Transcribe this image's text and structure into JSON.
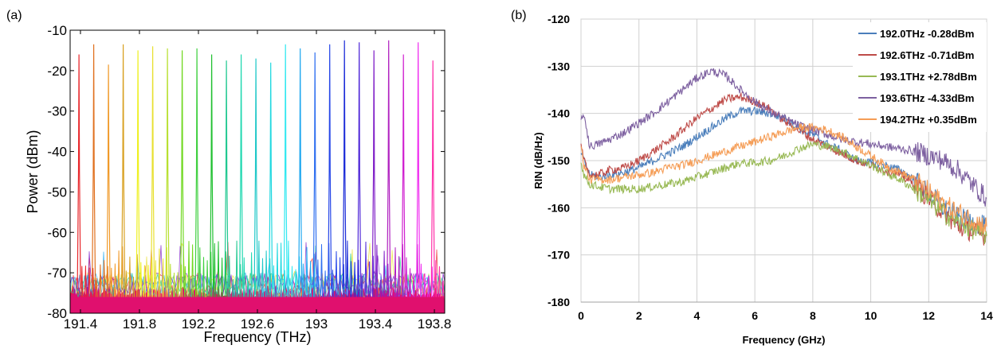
{
  "panels": [
    {
      "panel_label": "(a)"
    },
    {
      "panel_label": "(b)"
    }
  ],
  "chart_data": [
    {
      "type": "line",
      "subplot": "(a)",
      "xlabel": "Frequency (THz)",
      "ylabel": "Power (dBm)",
      "xlim": [
        191.33,
        193.87
      ],
      "ylim": [
        -80,
        -10
      ],
      "x_ticks": [
        191.4,
        191.8,
        192.2,
        192.6,
        193,
        193.4,
        193.8
      ],
      "x_tick_labels": [
        "191.4",
        "191.8",
        "192.2",
        "192.6",
        "193",
        "193.4",
        "193.8"
      ],
      "y_ticks": [
        -80,
        -70,
        -60,
        -50,
        -40,
        -30,
        -20,
        -10
      ],
      "y_tick_labels": [
        "-80",
        "-70",
        "-60",
        "-50",
        "-40",
        "-30",
        "-20",
        "-10"
      ],
      "grid": false,
      "noise_floor_dbm": -75,
      "comb_lines": [
        {
          "freq": 191.39,
          "peak": -16,
          "color": "#e8262a"
        },
        {
          "freq": 191.49,
          "peak": -13.5,
          "color": "#e0701e"
        },
        {
          "freq": 191.59,
          "peak": -18.5,
          "color": "#f09a2a"
        },
        {
          "freq": 191.69,
          "peak": -13.5,
          "color": "#d8a020"
        },
        {
          "freq": 191.79,
          "peak": -15,
          "color": "#eef020"
        },
        {
          "freq": 191.89,
          "peak": -14,
          "color": "#e8e030"
        },
        {
          "freq": 191.99,
          "peak": -14.5,
          "color": "#b8e030"
        },
        {
          "freq": 192.09,
          "peak": -15,
          "color": "#70d820"
        },
        {
          "freq": 192.19,
          "peak": -14.5,
          "color": "#40d040"
        },
        {
          "freq": 192.29,
          "peak": -16,
          "color": "#20c030"
        },
        {
          "freq": 192.39,
          "peak": -17.5,
          "color": "#20c890"
        },
        {
          "freq": 192.49,
          "peak": -16,
          "color": "#20d8b0"
        },
        {
          "freq": 192.59,
          "peak": -17,
          "color": "#20c8c8"
        },
        {
          "freq": 192.69,
          "peak": -18,
          "color": "#20d8e0"
        },
        {
          "freq": 192.79,
          "peak": -13.5,
          "color": "#30e8f0"
        },
        {
          "freq": 192.89,
          "peak": -14.5,
          "color": "#20a8f0"
        },
        {
          "freq": 192.99,
          "peak": -15.5,
          "color": "#3070f0"
        },
        {
          "freq": 193.09,
          "peak": -13.5,
          "color": "#2848e8"
        },
        {
          "freq": 193.19,
          "peak": -12.5,
          "color": "#1c2cd8"
        },
        {
          "freq": 193.29,
          "peak": -13,
          "color": "#5028d8"
        },
        {
          "freq": 193.39,
          "peak": -15,
          "color": "#8020c8"
        },
        {
          "freq": 193.49,
          "peak": -12.5,
          "color": "#b020c0"
        },
        {
          "freq": 193.59,
          "peak": -16,
          "color": "#d020d0"
        },
        {
          "freq": 193.69,
          "peak": -13,
          "color": "#f02cf0"
        },
        {
          "freq": 193.79,
          "peak": -17.5,
          "color": "#ff30a8"
        }
      ]
    },
    {
      "type": "line",
      "subplot": "(b)",
      "xlabel": "Frequency (GHz)",
      "ylabel": "RIN (dB/Hz)",
      "xlim": [
        0,
        14
      ],
      "ylim": [
        -180,
        -120
      ],
      "x_ticks": [
        0,
        2,
        4,
        6,
        8,
        10,
        12,
        14
      ],
      "x_tick_labels": [
        "0",
        "2",
        "4",
        "6",
        "8",
        "10",
        "12",
        "14"
      ],
      "y_ticks": [
        -180,
        -170,
        -160,
        -150,
        -140,
        -130,
        -120
      ],
      "y_tick_labels": [
        "-180",
        "-170",
        "-160",
        "-150",
        "-140",
        "-130",
        "-120"
      ],
      "grid": true,
      "legend_position": "top-right",
      "series": [
        {
          "name": "192.0THz -0.28dBm",
          "color": "#4a7ebb",
          "x": [
            0,
            0.1,
            0.3,
            0.6,
            1,
            1.5,
            2,
            2.5,
            3,
            3.5,
            4,
            4.5,
            5,
            5.5,
            6,
            6.5,
            7,
            7.5,
            8,
            8.5,
            9,
            9.5,
            10,
            10.5,
            11,
            11.5,
            12,
            12.5,
            13,
            13.5,
            14
          ],
          "y": [
            -148,
            -150,
            -153,
            -153.5,
            -153,
            -152.5,
            -151.5,
            -150,
            -148.5,
            -147,
            -145,
            -143,
            -141,
            -139.5,
            -139.5,
            -140,
            -141,
            -143,
            -144.5,
            -146.5,
            -148,
            -150,
            -150.5,
            -151,
            -152,
            -154,
            -157,
            -160,
            -162,
            -163,
            -164
          ]
        },
        {
          "name": "192.6THz -0.71dBm",
          "color": "#be4b48",
          "x": [
            0,
            0.1,
            0.3,
            0.6,
            1,
            1.5,
            2,
            2.5,
            3,
            3.5,
            4,
            4.5,
            5,
            5.5,
            6,
            6.5,
            7,
            7.5,
            8,
            8.5,
            9,
            9.5,
            10,
            10.5,
            11,
            11.5,
            12,
            12.5,
            13,
            13.5,
            14
          ],
          "y": [
            -147,
            -150,
            -153,
            -153,
            -152,
            -151.5,
            -150,
            -148,
            -146,
            -143.5,
            -141,
            -139,
            -137,
            -136.5,
            -137.5,
            -139,
            -141.5,
            -143.5,
            -145.5,
            -147,
            -148.5,
            -150,
            -151,
            -152,
            -153,
            -155,
            -158,
            -161,
            -164,
            -165,
            -166
          ]
        },
        {
          "name": "193.1THz +2.78dBm",
          "color": "#98b954",
          "x": [
            0,
            0.1,
            0.3,
            0.6,
            1,
            1.5,
            2,
            2.5,
            3,
            3.5,
            4,
            4.5,
            5,
            5.5,
            6,
            6.5,
            7,
            7.5,
            8,
            8.5,
            9,
            9.5,
            10,
            10.5,
            11,
            11.5,
            12,
            12.5,
            13,
            13.5,
            14
          ],
          "y": [
            -150,
            -153,
            -155,
            -155.5,
            -156,
            -156,
            -156,
            -155.5,
            -155,
            -154.5,
            -153.5,
            -152.5,
            -151.5,
            -150.5,
            -150.5,
            -150,
            -149,
            -147.5,
            -146.5,
            -147,
            -148,
            -149.5,
            -151,
            -152.5,
            -154,
            -156,
            -158.5,
            -161,
            -163,
            -164.5,
            -166
          ]
        },
        {
          "name": "193.6THz -4.33dBm",
          "color": "#7d60a0",
          "x": [
            0,
            0.1,
            0.3,
            0.6,
            1,
            1.5,
            2,
            2.5,
            3,
            3.5,
            4,
            4.5,
            5,
            5.5,
            6,
            6.5,
            7,
            7.5,
            8,
            8.5,
            9,
            9.5,
            10,
            10.5,
            11,
            11.5,
            12,
            12.5,
            13,
            13.5,
            14
          ],
          "y": [
            -142,
            -140,
            -147,
            -146.5,
            -145.5,
            -144,
            -142,
            -140,
            -137.5,
            -135,
            -132.5,
            -131,
            -132,
            -135,
            -137.5,
            -139.5,
            -141,
            -142.5,
            -143.5,
            -144.5,
            -145.5,
            -146,
            -146.5,
            -147,
            -147.5,
            -148,
            -149,
            -150,
            -152,
            -155,
            -158
          ]
        },
        {
          "name": "194.2THz +0.35dBm",
          "color": "#f59d56",
          "x": [
            0,
            0.1,
            0.3,
            0.6,
            1,
            1.5,
            2,
            2.5,
            3,
            3.5,
            4,
            4.5,
            5,
            5.5,
            6,
            6.5,
            7,
            7.5,
            8,
            8.5,
            9,
            9.5,
            10,
            10.5,
            11,
            11.5,
            12,
            12.5,
            13,
            13.5,
            14
          ],
          "y": [
            -147,
            -151,
            -154,
            -154,
            -154,
            -153.5,
            -153,
            -152.5,
            -151.5,
            -151,
            -150,
            -149,
            -148,
            -147,
            -146,
            -145,
            -144,
            -143,
            -143,
            -143.5,
            -145,
            -147,
            -149,
            -151,
            -152.5,
            -154,
            -156.5,
            -159,
            -161,
            -162.5,
            -164
          ]
        }
      ]
    }
  ]
}
